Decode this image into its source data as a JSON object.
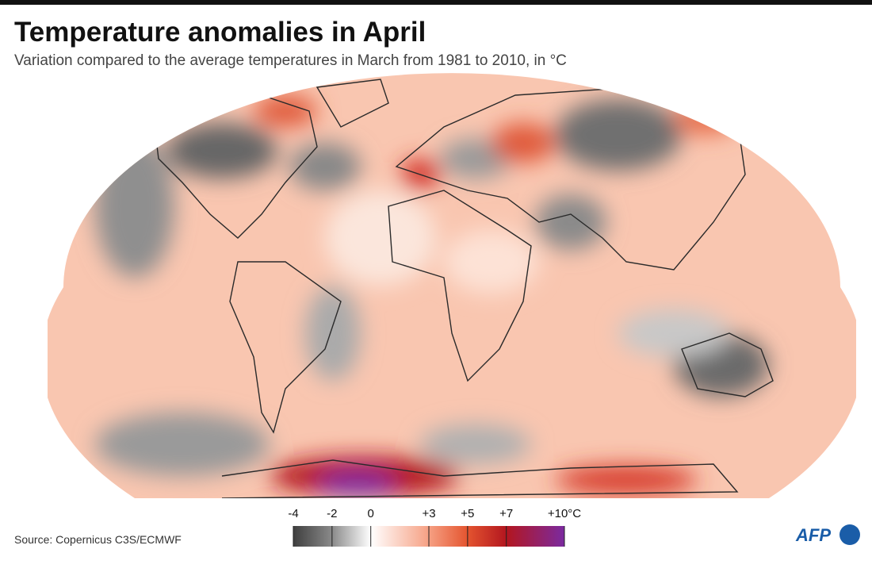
{
  "header": {
    "title": "Temperature anomalies in April",
    "subtitle": "Variation compared to the average temperatures in March from 1981 to 2010, in °C"
  },
  "legend": {
    "range": [
      -4,
      10
    ],
    "ticks": [
      -4,
      -2,
      0,
      {
        "value": 3,
        "label": "+3"
      },
      {
        "value": 5,
        "label": "+5"
      },
      {
        "value": 7,
        "label": "+7"
      },
      {
        "value": 10,
        "label": "+10°C"
      }
    ],
    "colors": [
      "#3f3f3f",
      "#8a8a8a",
      "#ffffff",
      "#f6a083",
      "#e4542f",
      "#b3161f",
      "#7b2aa0"
    ]
  },
  "source": "Source: Copernicus C3S/ECMWF",
  "logo": "AFP"
}
